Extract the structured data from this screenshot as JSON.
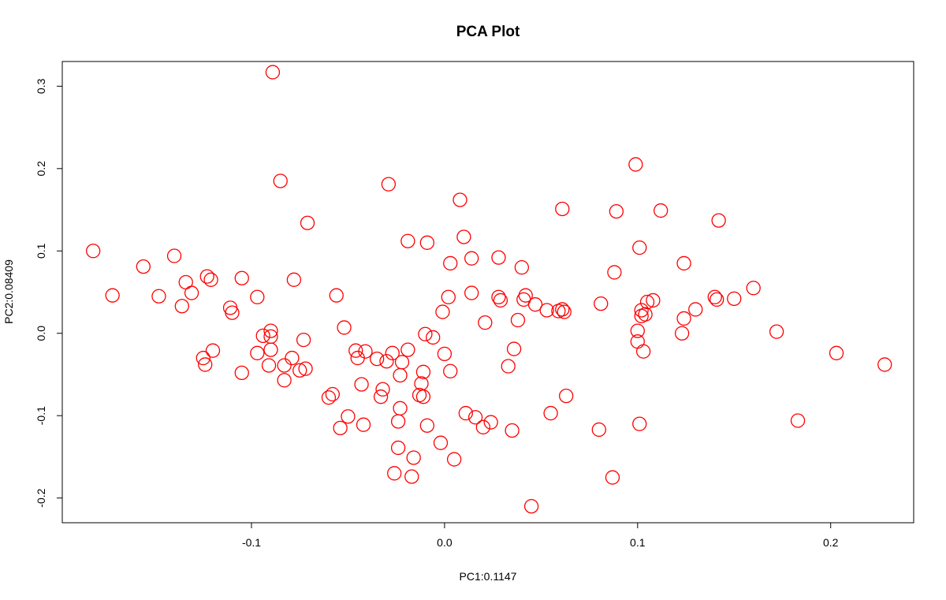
{
  "chart_data": {
    "type": "scatter",
    "title": "PCA Plot",
    "xlabel": "PC1:0.1147",
    "ylabel": "PC2:0.08409",
    "xlim": [
      -0.198,
      0.243
    ],
    "ylim": [
      -0.23,
      0.33
    ],
    "xticks": [
      -0.1,
      0.0,
      0.1,
      0.2
    ],
    "xtick_labels": [
      "-0.1",
      "0.0",
      "0.1",
      "0.2"
    ],
    "yticks": [
      -0.2,
      -0.1,
      0.0,
      0.1,
      0.2,
      0.3
    ],
    "ytick_labels": [
      "-0.2",
      "-0.1",
      "0.0",
      "0.1",
      "0.2",
      "0.3"
    ],
    "grid": false,
    "marker_color": "#ff0000",
    "marker": "open-circle",
    "points": [
      [
        -0.182,
        0.1
      ],
      [
        -0.172,
        0.046
      ],
      [
        -0.156,
        0.081
      ],
      [
        -0.148,
        0.045
      ],
      [
        -0.14,
        0.094
      ],
      [
        -0.136,
        0.033
      ],
      [
        -0.134,
        0.062
      ],
      [
        -0.131,
        0.049
      ],
      [
        -0.123,
        0.069
      ],
      [
        -0.121,
        0.065
      ],
      [
        -0.125,
        -0.03
      ],
      [
        -0.124,
        -0.038
      ],
      [
        -0.12,
        -0.021
      ],
      [
        -0.111,
        0.031
      ],
      [
        -0.11,
        0.025
      ],
      [
        -0.105,
        0.067
      ],
      [
        -0.105,
        -0.048
      ],
      [
        -0.097,
        0.044
      ],
      [
        -0.097,
        -0.024
      ],
      [
        -0.094,
        -0.003
      ],
      [
        -0.09,
        0.003
      ],
      [
        -0.09,
        -0.004
      ],
      [
        -0.09,
        -0.02
      ],
      [
        -0.091,
        -0.039
      ],
      [
        -0.089,
        0.317
      ],
      [
        -0.085,
        0.185
      ],
      [
        -0.083,
        -0.039
      ],
      [
        -0.083,
        -0.057
      ],
      [
        -0.079,
        -0.03
      ],
      [
        -0.078,
        0.065
      ],
      [
        -0.075,
        -0.045
      ],
      [
        -0.073,
        -0.008
      ],
      [
        -0.072,
        -0.043
      ],
      [
        -0.071,
        0.134
      ],
      [
        -0.06,
        -0.078
      ],
      [
        -0.058,
        -0.074
      ],
      [
        -0.056,
        0.046
      ],
      [
        -0.054,
        -0.115
      ],
      [
        -0.052,
        0.007
      ],
      [
        -0.05,
        -0.101
      ],
      [
        -0.046,
        -0.021
      ],
      [
        -0.045,
        -0.03
      ],
      [
        -0.043,
        -0.062
      ],
      [
        -0.042,
        -0.111
      ],
      [
        -0.041,
        -0.022
      ],
      [
        -0.035,
        -0.031
      ],
      [
        -0.033,
        -0.077
      ],
      [
        -0.032,
        -0.068
      ],
      [
        -0.03,
        -0.034
      ],
      [
        -0.029,
        0.181
      ],
      [
        -0.027,
        -0.024
      ],
      [
        -0.026,
        -0.17
      ],
      [
        -0.024,
        -0.139
      ],
      [
        -0.024,
        -0.107
      ],
      [
        -0.023,
        -0.091
      ],
      [
        -0.023,
        -0.051
      ],
      [
        -0.022,
        -0.035
      ],
      [
        -0.019,
        -0.02
      ],
      [
        -0.019,
        0.112
      ],
      [
        -0.017,
        -0.174
      ],
      [
        -0.016,
        -0.151
      ],
      [
        -0.013,
        -0.075
      ],
      [
        -0.012,
        -0.061
      ],
      [
        -0.011,
        -0.047
      ],
      [
        -0.011,
        -0.077
      ],
      [
        -0.01,
        -0.001
      ],
      [
        -0.009,
        0.11
      ],
      [
        -0.009,
        -0.112
      ],
      [
        -0.006,
        -0.005
      ],
      [
        -0.002,
        -0.133
      ],
      [
        -0.001,
        0.026
      ],
      [
        0.0,
        -0.025
      ],
      [
        0.002,
        0.044
      ],
      [
        0.003,
        0.085
      ],
      [
        0.003,
        -0.046
      ],
      [
        0.005,
        -0.153
      ],
      [
        0.008,
        0.162
      ],
      [
        0.01,
        0.117
      ],
      [
        0.011,
        -0.097
      ],
      [
        0.014,
        0.049
      ],
      [
        0.014,
        0.091
      ],
      [
        0.016,
        -0.102
      ],
      [
        0.02,
        -0.114
      ],
      [
        0.021,
        0.013
      ],
      [
        0.024,
        -0.108
      ],
      [
        0.028,
        0.092
      ],
      [
        0.028,
        0.044
      ],
      [
        0.029,
        0.04
      ],
      [
        0.033,
        -0.04
      ],
      [
        0.035,
        -0.118
      ],
      [
        0.036,
        -0.019
      ],
      [
        0.038,
        0.016
      ],
      [
        0.04,
        0.08
      ],
      [
        0.041,
        0.041
      ],
      [
        0.042,
        0.046
      ],
      [
        0.045,
        -0.21
      ],
      [
        0.047,
        0.035
      ],
      [
        0.053,
        0.028
      ],
      [
        0.055,
        -0.097
      ],
      [
        0.059,
        0.027
      ],
      [
        0.061,
        0.029
      ],
      [
        0.061,
        0.151
      ],
      [
        0.062,
        0.026
      ],
      [
        0.063,
        -0.076
      ],
      [
        0.08,
        -0.117
      ],
      [
        0.081,
        0.036
      ],
      [
        0.087,
        -0.175
      ],
      [
        0.088,
        0.074
      ],
      [
        0.089,
        0.148
      ],
      [
        0.099,
        0.205
      ],
      [
        0.1,
        0.003
      ],
      [
        0.1,
        -0.01
      ],
      [
        0.101,
        -0.11
      ],
      [
        0.101,
        0.104
      ],
      [
        0.102,
        0.021
      ],
      [
        0.102,
        0.028
      ],
      [
        0.103,
        -0.022
      ],
      [
        0.104,
        0.023
      ],
      [
        0.105,
        0.038
      ],
      [
        0.108,
        0.04
      ],
      [
        0.112,
        0.149
      ],
      [
        0.123,
        0.0
      ],
      [
        0.124,
        0.085
      ],
      [
        0.124,
        0.018
      ],
      [
        0.13,
        0.029
      ],
      [
        0.14,
        0.044
      ],
      [
        0.141,
        0.041
      ],
      [
        0.142,
        0.137
      ],
      [
        0.15,
        0.042
      ],
      [
        0.16,
        0.055
      ],
      [
        0.172,
        0.002
      ],
      [
        0.183,
        -0.106
      ],
      [
        0.203,
        -0.024
      ],
      [
        0.228,
        -0.038
      ]
    ]
  }
}
